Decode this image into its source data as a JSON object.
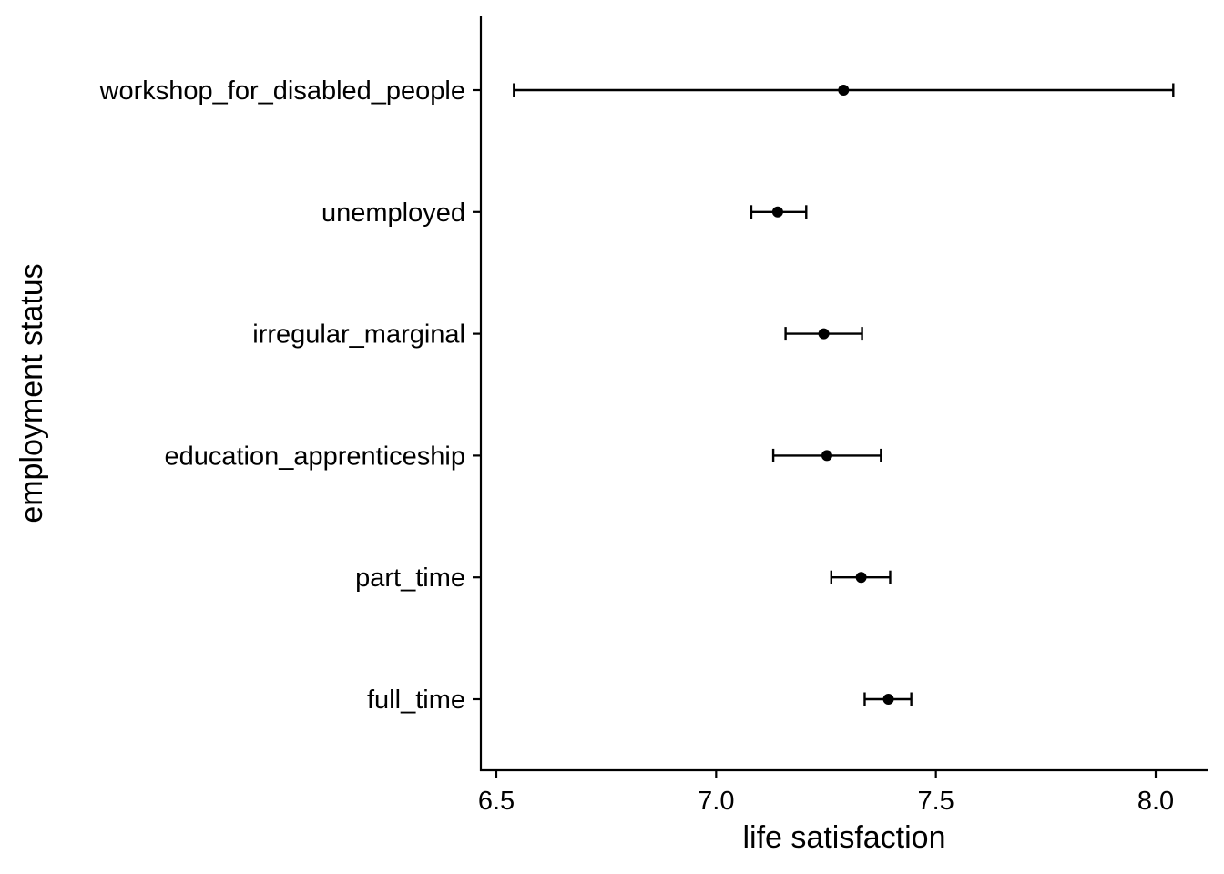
{
  "chart_data": {
    "type": "scatter",
    "subtype": "point-range (mean with error bars)",
    "xlabel": "life satisfaction",
    "ylabel": "employment status",
    "xlim": [
      6.47,
      8.12
    ],
    "x_ticks": [
      6.5,
      7.0,
      7.5,
      8.0
    ],
    "x_tick_labels": [
      "6.5",
      "7.0",
      "7.5",
      "8.0"
    ],
    "categories": [
      "workshop_for_disabled_people",
      "unemployed",
      "irregular_marginal",
      "education_apprenticeship",
      "part_time",
      "full_time"
    ],
    "values": [
      7.29,
      7.14,
      7.245,
      7.252,
      7.33,
      7.392
    ],
    "lower": [
      6.54,
      7.08,
      7.158,
      7.13,
      7.262,
      7.338
    ],
    "upper": [
      8.04,
      7.205,
      7.332,
      7.375,
      7.396,
      7.444
    ],
    "grid": false,
    "legend": "none",
    "colors": {
      "points": "#000000",
      "axes": "#000000",
      "background": "#ffffff"
    }
  }
}
